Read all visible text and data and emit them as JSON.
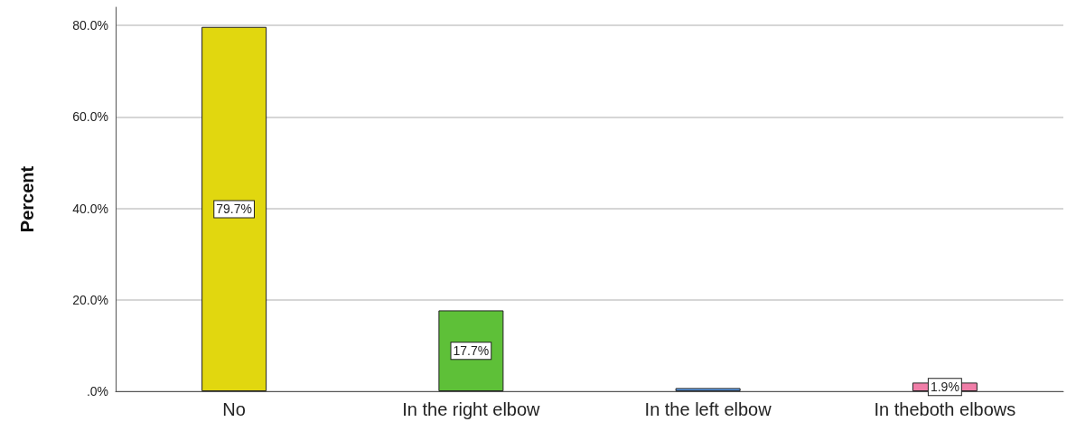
{
  "chart_data": {
    "type": "bar",
    "ylabel": "Percent",
    "categories": [
      "No",
      "In the right elbow",
      "In the left elbow",
      "In theboth elbows"
    ],
    "values": [
      79.7,
      17.7,
      0.7,
      1.9
    ],
    "colors": [
      "#e1d70f",
      "#5ec038",
      "#5b9be6",
      "#f07ea8"
    ],
    "value_labels": [
      "79.7%",
      "17.7%",
      null,
      "1.9%"
    ],
    "ylim": [
      0,
      84
    ],
    "yticks": [
      {
        "value": 0,
        "label": ".0%"
      },
      {
        "value": 20,
        "label": "20.0%"
      },
      {
        "value": 40,
        "label": "40.0%"
      },
      {
        "value": 60,
        "label": "60.0%"
      },
      {
        "value": 80,
        "label": "80.0%"
      }
    ],
    "grid": "y"
  }
}
